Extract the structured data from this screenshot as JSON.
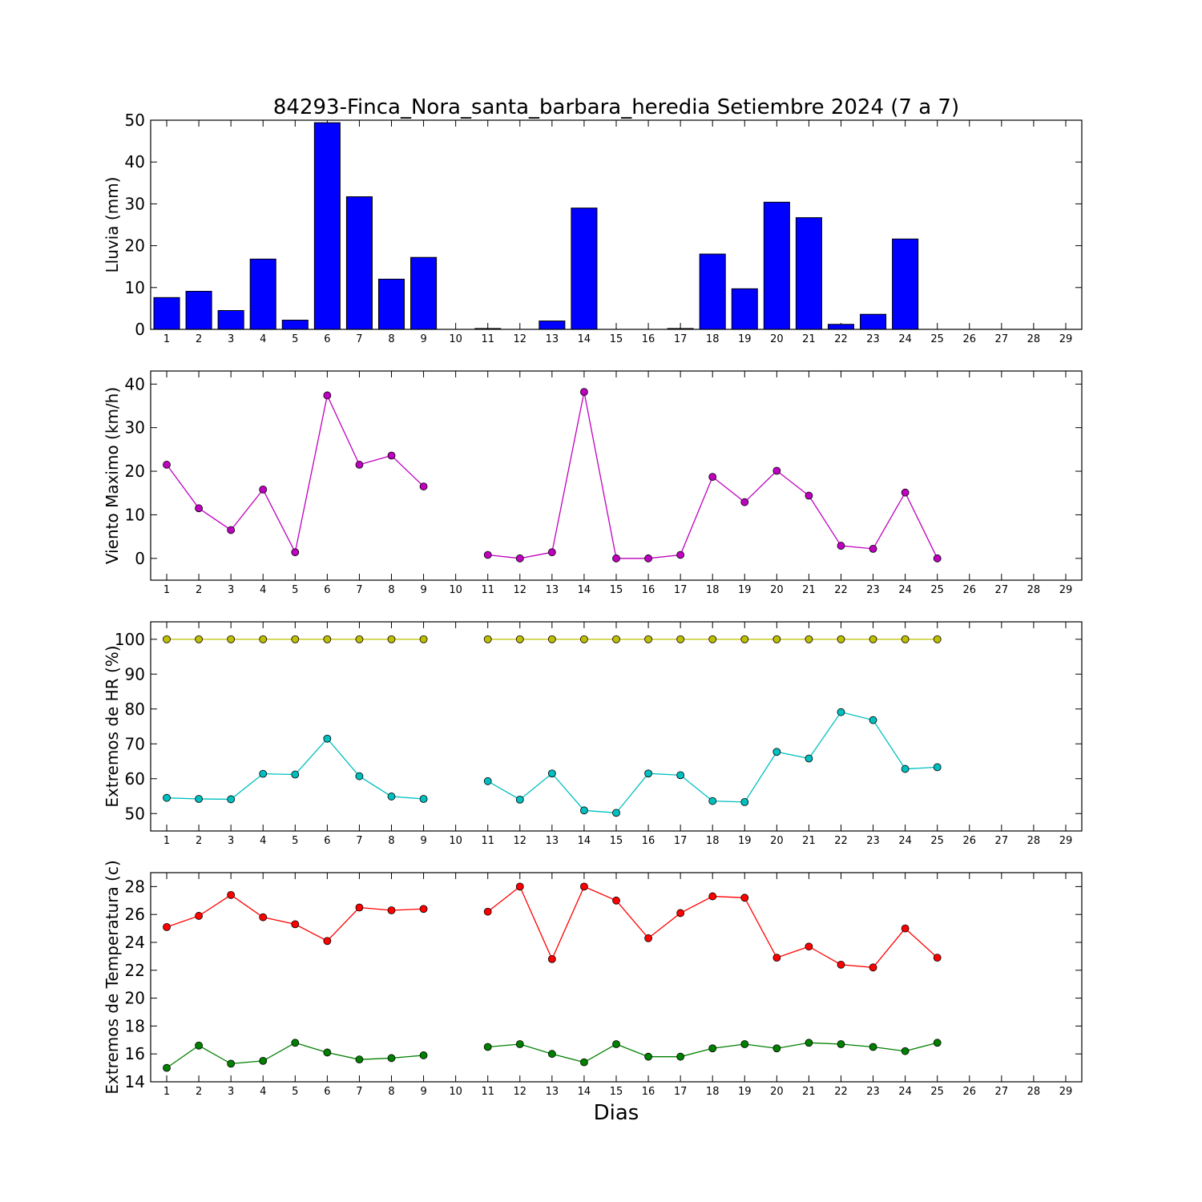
{
  "title": "84293-Finca_Nora_santa_barbara_heredia Setiembre 2024  (7 a 7)",
  "xlabel": "Dias",
  "chart_data": [
    {
      "type": "bar",
      "ylabel": "Lluvia (mm)",
      "ylim": [
        0,
        50
      ],
      "yticks": [
        0,
        10,
        20,
        30,
        40,
        50
      ],
      "xlim": [
        0.5,
        29.5
      ],
      "xticks": [
        1,
        2,
        3,
        4,
        5,
        6,
        7,
        8,
        9,
        10,
        11,
        12,
        13,
        14,
        15,
        16,
        17,
        18,
        19,
        20,
        21,
        22,
        23,
        24,
        25,
        26,
        27,
        28,
        29
      ],
      "series": [
        {
          "color": "#0000ff",
          "x": [
            1,
            2,
            3,
            4,
            5,
            6,
            7,
            8,
            9,
            10,
            11,
            12,
            13,
            14,
            15,
            16,
            17,
            18,
            19,
            20,
            21,
            22,
            23,
            24,
            25,
            26,
            27,
            28,
            29
          ],
          "values": [
            7.6,
            9.1,
            4.5,
            16.8,
            2.2,
            49.4,
            31.7,
            12.0,
            17.2,
            0,
            0.2,
            0,
            2.0,
            29.0,
            0,
            0,
            0.2,
            18.0,
            9.7,
            30.4,
            26.7,
            1.2,
            3.6,
            21.6,
            0,
            0,
            0,
            0,
            0
          ]
        }
      ]
    },
    {
      "type": "line",
      "ylabel": "Viento Maximo (km/h)",
      "ylim": [
        -5,
        43
      ],
      "yticks": [
        0,
        10,
        20,
        30,
        40
      ],
      "xlim": [
        0.5,
        29.5
      ],
      "xticks": [
        1,
        2,
        3,
        4,
        5,
        6,
        7,
        8,
        9,
        10,
        11,
        12,
        13,
        14,
        15,
        16,
        17,
        18,
        19,
        20,
        21,
        22,
        23,
        24,
        25,
        26,
        27,
        28,
        29
      ],
      "series": [
        {
          "color": "#bf00bf",
          "x": [
            1,
            2,
            3,
            4,
            5,
            6,
            7,
            8,
            9,
            10,
            11,
            12,
            13,
            14,
            15,
            16,
            17,
            18,
            19,
            20,
            21,
            22,
            23,
            24,
            25
          ],
          "values": [
            21.5,
            11.5,
            6.5,
            15.8,
            1.4,
            37.4,
            21.5,
            23.6,
            16.5,
            null,
            0.8,
            0,
            1.4,
            38.2,
            0,
            0,
            0.8,
            18.7,
            12.9,
            20.1,
            14.4,
            2.9,
            2.2,
            15.1,
            0
          ]
        }
      ]
    },
    {
      "type": "line",
      "ylabel": "Extremos de HR (%)",
      "ylim": [
        45,
        105
      ],
      "yticks": [
        50,
        60,
        70,
        80,
        90,
        100
      ],
      "xlim": [
        0.5,
        29.5
      ],
      "xticks": [
        1,
        2,
        3,
        4,
        5,
        6,
        7,
        8,
        9,
        10,
        11,
        12,
        13,
        14,
        15,
        16,
        17,
        18,
        19,
        20,
        21,
        22,
        23,
        24,
        25,
        26,
        27,
        28,
        29
      ],
      "series": [
        {
          "color": "#bfbf00",
          "x": [
            1,
            2,
            3,
            4,
            5,
            6,
            7,
            8,
            9,
            10,
            11,
            12,
            13,
            14,
            15,
            16,
            17,
            18,
            19,
            20,
            21,
            22,
            23,
            24,
            25
          ],
          "values": [
            100,
            100,
            100,
            100,
            100,
            100,
            100,
            100,
            100,
            null,
            100,
            100,
            100,
            100,
            100,
            100,
            100,
            100,
            100,
            100,
            100,
            100,
            100,
            100,
            100
          ]
        },
        {
          "color": "#00bfbf",
          "x": [
            1,
            2,
            3,
            4,
            5,
            6,
            7,
            8,
            9,
            10,
            11,
            12,
            13,
            14,
            15,
            16,
            17,
            18,
            19,
            20,
            21,
            22,
            23,
            24,
            25
          ],
          "values": [
            54.5,
            54.2,
            54.1,
            61.4,
            61.2,
            71.5,
            60.7,
            54.9,
            54.2,
            null,
            59.3,
            54.0,
            61.5,
            50.9,
            50.2,
            61.5,
            61.0,
            53.6,
            53.3,
            67.7,
            65.8,
            79.1,
            76.8,
            62.8,
            63.3
          ]
        }
      ]
    },
    {
      "type": "line",
      "ylabel": "Extremos de Temperatura (c)",
      "ylim": [
        14,
        29
      ],
      "yticks": [
        14,
        16,
        18,
        20,
        22,
        24,
        26,
        28
      ],
      "xlim": [
        0.5,
        29.5
      ],
      "xticks": [
        1,
        2,
        3,
        4,
        5,
        6,
        7,
        8,
        9,
        10,
        11,
        12,
        13,
        14,
        15,
        16,
        17,
        18,
        19,
        20,
        21,
        22,
        23,
        24,
        25,
        26,
        27,
        28,
        29
      ],
      "series": [
        {
          "color": "#ff0000",
          "x": [
            1,
            2,
            3,
            4,
            5,
            6,
            7,
            8,
            9,
            10,
            11,
            12,
            13,
            14,
            15,
            16,
            17,
            18,
            19,
            20,
            21,
            22,
            23,
            24,
            25
          ],
          "values": [
            25.1,
            25.9,
            27.4,
            25.8,
            25.3,
            24.1,
            26.5,
            26.3,
            26.4,
            null,
            26.2,
            28.0,
            22.8,
            28.0,
            27.0,
            24.3,
            26.1,
            27.3,
            27.2,
            22.9,
            23.7,
            22.4,
            22.2,
            25.0,
            22.9
          ]
        },
        {
          "color": "#008000",
          "x": [
            1,
            2,
            3,
            4,
            5,
            6,
            7,
            8,
            9,
            10,
            11,
            12,
            13,
            14,
            15,
            16,
            17,
            18,
            19,
            20,
            21,
            22,
            23,
            24,
            25
          ],
          "values": [
            15.0,
            16.6,
            15.3,
            15.5,
            16.8,
            16.1,
            15.6,
            15.7,
            15.9,
            null,
            16.5,
            16.7,
            16.0,
            15.4,
            16.7,
            15.8,
            15.8,
            16.4,
            16.7,
            16.4,
            16.8,
            16.7,
            16.5,
            16.2,
            16.8
          ]
        }
      ]
    }
  ]
}
